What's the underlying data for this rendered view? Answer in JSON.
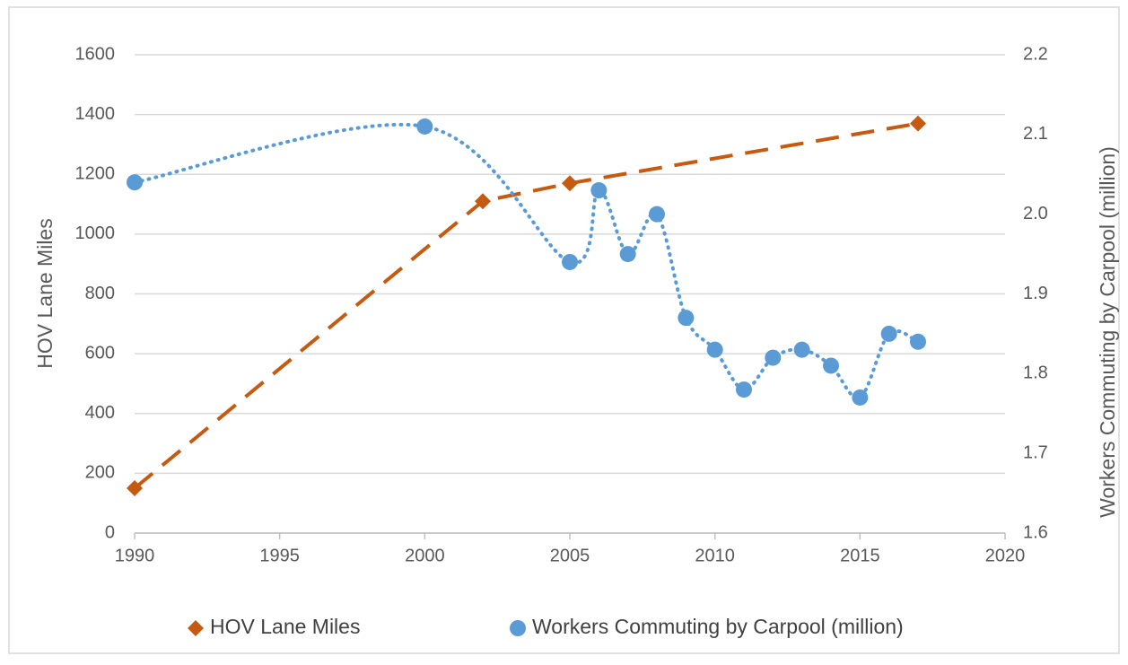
{
  "chart_data": {
    "type": "line",
    "xlim": [
      1990,
      2020
    ],
    "xticks": [
      1990,
      1995,
      2000,
      2005,
      2010,
      2015,
      2020
    ],
    "ylim": [
      0,
      1600
    ],
    "yticks": [
      0,
      200,
      400,
      600,
      800,
      1000,
      1200,
      1400,
      1600
    ],
    "y2lim": [
      1.6,
      2.2
    ],
    "y2ticks": [
      1.6,
      1.7,
      1.8,
      1.9,
      {
        "value": 2,
        "label": "2.0"
      },
      2.1,
      2.2
    ],
    "y_label": "HOV Lane Miles",
    "y2_label": "Workers Commuting by Carpool (million)",
    "grid": true,
    "legend": "bottom",
    "series": [
      {
        "name": "HOV Lane Miles",
        "color": "#c55a11",
        "marker": "diamond",
        "line": "dashed",
        "x": [
          1990,
          2002,
          2005,
          2017
        ],
        "values": [
          150,
          1110,
          1170,
          1370
        ]
      },
      {
        "name": "Workers Commuting by Carpool (million)",
        "color": "#5b9bd5",
        "marker": "circle",
        "line": "dotted",
        "axis": "y2",
        "x": [
          1990,
          2000,
          2005,
          2006,
          2007,
          2008,
          2009,
          2010,
          2011,
          2012,
          2013,
          2014,
          2015,
          2016,
          2017
        ],
        "values": [
          2.04,
          2.11,
          1.94,
          2.03,
          1.95,
          2.0,
          1.87,
          1.83,
          1.78,
          1.82,
          1.83,
          1.81,
          1.77,
          1.85,
          1.84
        ]
      }
    ]
  }
}
